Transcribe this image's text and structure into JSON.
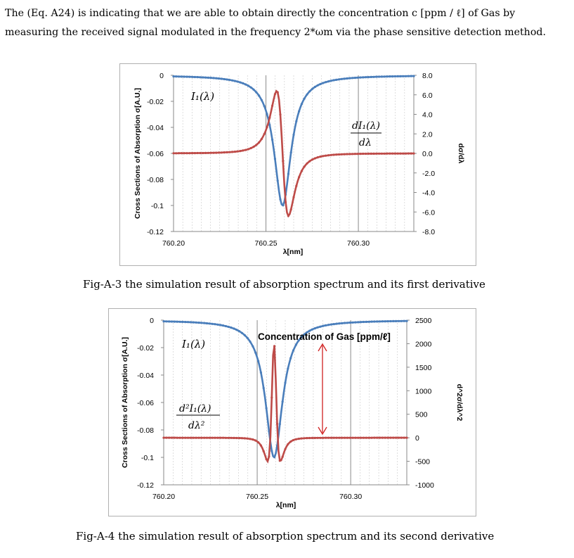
{
  "paragraph": {
    "line1": "The (Eq. A24) is indicating that we are able to obtain directly the concentration c [ppm / ℓ] of Gas by",
    "line2": "measuring the received signal modulated in the frequency 2*ωm via the phase sensitive detection method."
  },
  "captions": {
    "fig3": "Fig-A-3 the simulation result of absorption spectrum and its first derivative",
    "fig4": "Fig-A-4 the simulation result of absorption spectrum and its second derivative"
  },
  "chart_data": [
    {
      "type": "line",
      "xlabel": "λ[nm]",
      "ylabel": "Cross Sections of Absorption σ[A.U.]",
      "y2label": "dσ/dλ",
      "xlim": [
        760.2,
        760.33
      ],
      "xticks": [
        "760.20",
        "760.25",
        "760.30"
      ],
      "ylim": [
        -0.12,
        0
      ],
      "yticks": [
        "0",
        "-0.02",
        "-0.04",
        "-0.06",
        "-0.08",
        "-0.1",
        "-0.12"
      ],
      "y2lim": [
        -8.0,
        8.0
      ],
      "y2ticks": [
        "8.0",
        "6.0",
        "4.0",
        "2.0",
        "0.0",
        "-2.0",
        "-4.0",
        "-6.0",
        "-8.0"
      ],
      "grid": true,
      "series": [
        {
          "name": "I₁(λ)",
          "axis": "left",
          "color": "#4a7ebb",
          "shape": "absorption",
          "center": 760.259,
          "width": 0.0055,
          "depth": -0.1
        },
        {
          "name": "dI₁(λ)/dλ",
          "axis": "right",
          "color": "#be4b48",
          "shape": "first-derivative",
          "min": -6.4,
          "max": 6.4
        }
      ],
      "annotations": [
        {
          "text": "I₁(λ)"
        },
        {
          "text": "dI₁(λ)",
          "denominator": "dλ"
        }
      ]
    },
    {
      "type": "line",
      "xlabel": "λ[nm]",
      "ylabel": "Cross Sections of Absorption σ[A.U.]",
      "y2label": "d^2σ/dλ^2",
      "xlim": [
        760.2,
        760.33
      ],
      "xticks": [
        "760.20",
        "760.25",
        "760.30"
      ],
      "ylim": [
        -0.12,
        0
      ],
      "yticks": [
        "0",
        "-0.02",
        "-0.04",
        "-0.06",
        "-0.08",
        "-0.1",
        "-0.12"
      ],
      "y2lim": [
        -1000,
        2500
      ],
      "y2ticks": [
        "2500",
        "2000",
        "1500",
        "1000",
        "500",
        "0",
        "-500",
        "-1000"
      ],
      "grid": true,
      "series": [
        {
          "name": "I₁(λ)",
          "axis": "left",
          "color": "#4a7ebb",
          "shape": "absorption",
          "center": 760.259,
          "width": 0.0055,
          "depth": -0.1
        },
        {
          "name": "d²I₁(λ)/dλ²",
          "axis": "right",
          "color": "#be4b48",
          "shape": "second-derivative",
          "peak": 2000,
          "trough": -500
        }
      ],
      "annotations": [
        {
          "text": "Concentration of Gas [ppm/ℓ]"
        },
        {
          "text": "I₁(λ)"
        },
        {
          "text": "d²I₁(λ)",
          "denominator": "dλ²"
        }
      ]
    }
  ]
}
